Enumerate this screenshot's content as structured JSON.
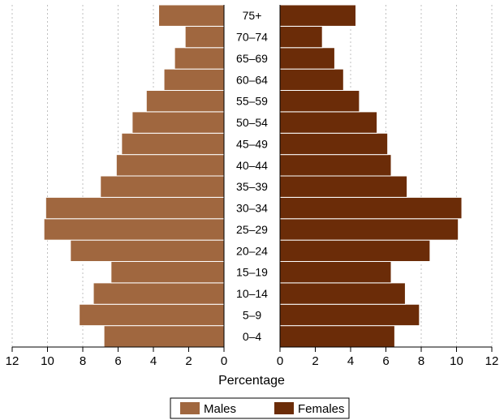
{
  "chart_data": {
    "type": "bar",
    "orientation": "horizontal-pyramid",
    "categories": [
      "0–4",
      "5–9",
      "10–14",
      "15–19",
      "20–24",
      "25–29",
      "30–34",
      "35–39",
      "40–44",
      "45–49",
      "50–54",
      "55–59",
      "60–64",
      "65–69",
      "70–74",
      "75+"
    ],
    "series": [
      {
        "name": "Males",
        "color": "#a0673f",
        "values": [
          6.8,
          8.2,
          7.4,
          6.4,
          8.7,
          10.2,
          10.1,
          7.0,
          6.1,
          5.8,
          5.2,
          4.4,
          3.4,
          2.8,
          2.2,
          3.7
        ]
      },
      {
        "name": "Females",
        "color": "#6b2c08",
        "values": [
          6.5,
          7.9,
          7.1,
          6.3,
          8.5,
          10.1,
          10.3,
          7.2,
          6.3,
          6.1,
          5.5,
          4.5,
          3.6,
          3.1,
          2.4,
          4.3
        ]
      }
    ],
    "xlabel": "Percentage",
    "xlim": [
      0,
      12
    ],
    "xticks": [
      "12",
      "10",
      "8",
      "6",
      "4",
      "2",
      "0"
    ],
    "xticks_right": [
      "0",
      "2",
      "4",
      "6",
      "8",
      "10",
      "12"
    ],
    "grid": true,
    "legend_position": "bottom"
  }
}
